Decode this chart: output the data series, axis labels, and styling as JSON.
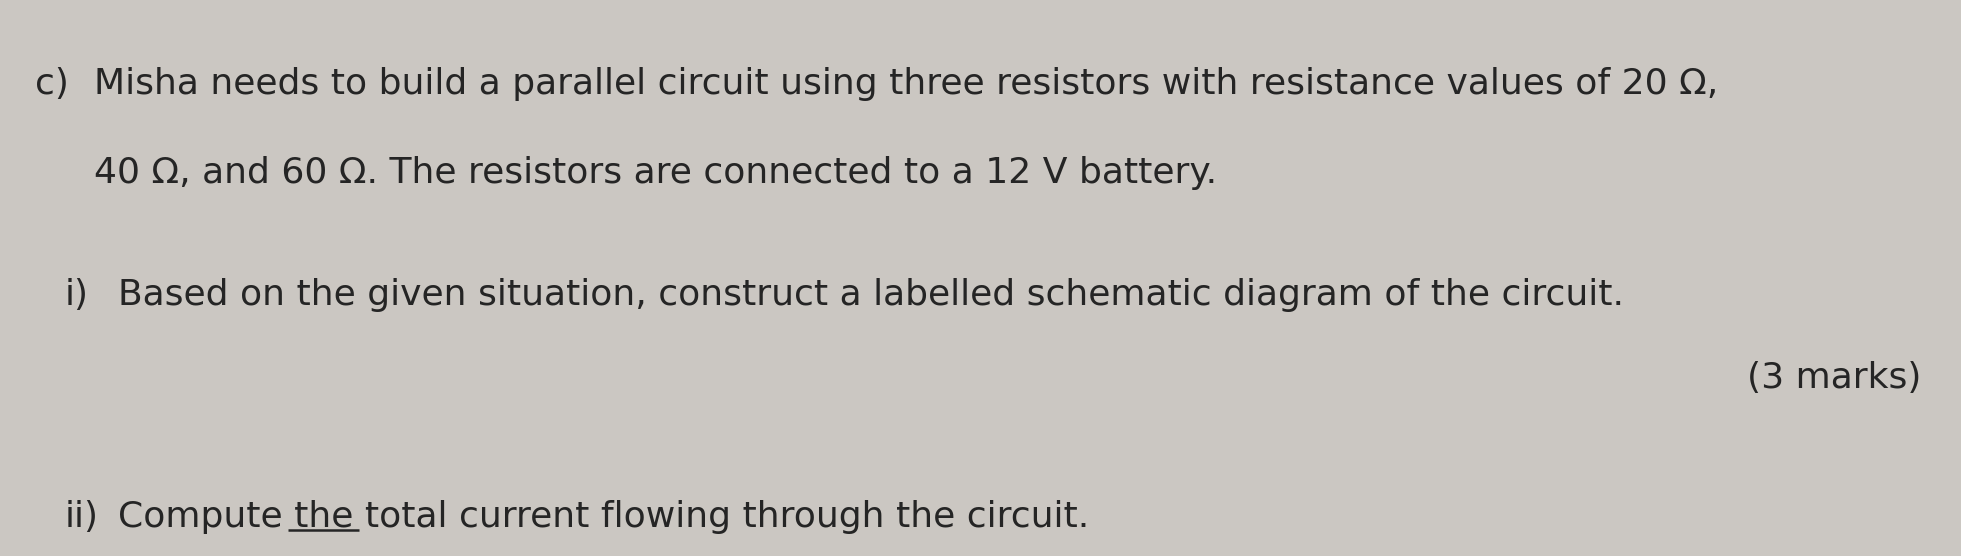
{
  "background_color": "#cbc7c2",
  "title_label": "c)",
  "line1": "Misha needs to build a parallel circuit using three resistors with resistance values of 20 Ω,",
  "line2": "40 Ω, and 60 Ω. The resistors are connected to a 12 V battery.",
  "question_i_label": "i)",
  "question_i_text": "Based on the given situation, construct a labelled schematic diagram of the circuit.",
  "marks_text": "(3 marks)",
  "question_ii_label": "ii)",
  "question_ii_text": "Compute the total current flowing through the circuit.",
  "font_size_main": 26,
  "text_color": "#252525",
  "underline_prefix": "Compute the ",
  "underline_word": "total"
}
